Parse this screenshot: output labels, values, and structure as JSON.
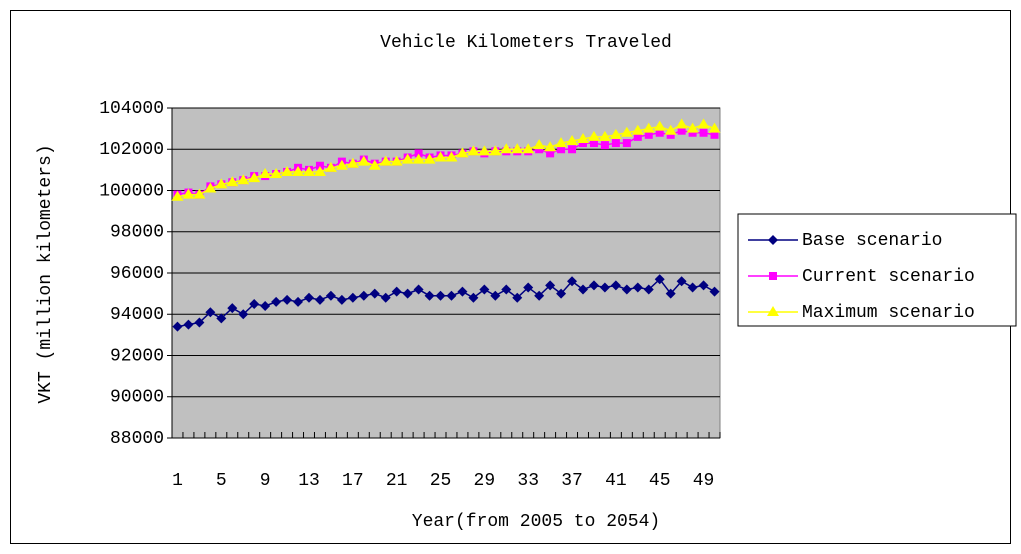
{
  "chart_data": {
    "type": "line",
    "title": "Vehicle Kilometers Traveled",
    "x_label": "Year(from 2005 to 2054)",
    "y_label": "VKT (million kilometers)",
    "categories": [
      1,
      null,
      null,
      null,
      5,
      null,
      null,
      null,
      9,
      null,
      null,
      null,
      13,
      null,
      null,
      null,
      17,
      null,
      null,
      null,
      21,
      null,
      null,
      null,
      25,
      null,
      null,
      null,
      29,
      null,
      null,
      null,
      33,
      null,
      null,
      null,
      37,
      null,
      null,
      null,
      41,
      null,
      null,
      null,
      45,
      null,
      null,
      null,
      49,
      null
    ],
    "series": [
      {
        "name": "Base scenario",
        "color": "#000080",
        "marker": "diamond",
        "values": [
          93400,
          93500,
          93600,
          94100,
          93800,
          94300,
          94000,
          94500,
          94400,
          94600,
          94700,
          94600,
          94800,
          94700,
          94900,
          94700,
          94800,
          94900,
          95000,
          94800,
          95100,
          95000,
          95200,
          94900,
          94900,
          94900,
          95100,
          94800,
          95200,
          94900,
          95200,
          94800,
          95300,
          94900,
          95400,
          95000,
          95600,
          95200,
          95400,
          95300,
          95400,
          95200,
          95300,
          95200,
          95700,
          95000,
          95600,
          95300,
          95400,
          95100
        ]
      },
      {
        "name": "Current scenario",
        "color": "#ff00ff",
        "marker": "square",
        "values": [
          99800,
          99900,
          99800,
          100200,
          100300,
          100400,
          100500,
          100700,
          100700,
          100800,
          100900,
          101100,
          101000,
          101200,
          101100,
          101400,
          101300,
          101500,
          101300,
          101400,
          101400,
          101600,
          101800,
          101600,
          101700,
          101700,
          101800,
          101900,
          101800,
          101900,
          101900,
          101900,
          101900,
          102000,
          101800,
          102000,
          102000,
          102300,
          102300,
          102200,
          102300,
          102300,
          102600,
          102700,
          102800,
          102700,
          102900,
          102800,
          102800,
          102700
        ]
      },
      {
        "name": "Maximum scenario",
        "color": "#ffff00",
        "marker": "triangle",
        "values": [
          99700,
          99800,
          99800,
          100100,
          100300,
          100400,
          100500,
          100600,
          100800,
          100800,
          100900,
          100900,
          100900,
          100900,
          101100,
          101200,
          101300,
          101400,
          101200,
          101400,
          101400,
          101500,
          101500,
          101500,
          101600,
          101600,
          101800,
          101900,
          101900,
          101900,
          102000,
          102000,
          102000,
          102200,
          102100,
          102300,
          102400,
          102500,
          102600,
          102600,
          102700,
          102800,
          102900,
          103000,
          103100,
          102900,
          103200,
          103000,
          103200,
          103000
        ]
      }
    ],
    "ylim": [
      88000,
      104000
    ],
    "yticks": [
      88000,
      90000,
      92000,
      94000,
      96000,
      98000,
      100000,
      102000,
      104000
    ],
    "grid": true,
    "plot_background": "#c0c0c0",
    "legend": "right"
  }
}
